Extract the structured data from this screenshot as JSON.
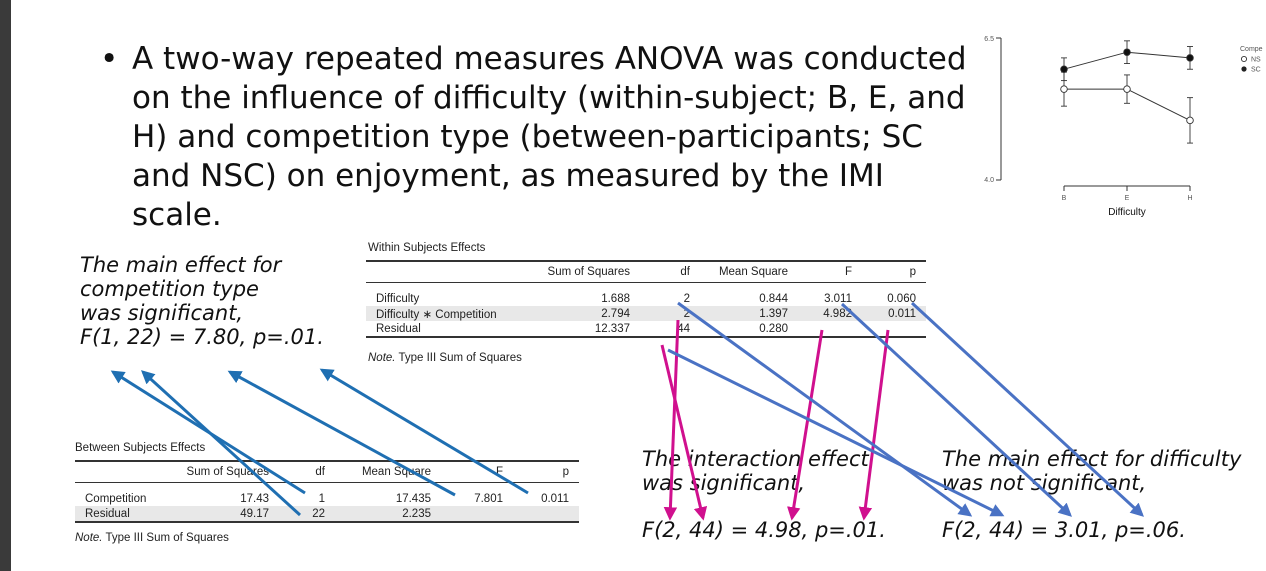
{
  "bullet": {
    "marker": "•",
    "text": "A two-way repeated measures ANOVA was conducted on the influence of difficulty (within-subject; B, E, and H) and competition type (between-participants; SC and NSC) on enjoyment, as measured by the IMI scale."
  },
  "plot": {
    "xlabel": "Difficulty",
    "x_ticks": [
      "B",
      "E",
      "H"
    ],
    "y_ticks": [
      "6.5",
      "4.0"
    ],
    "legend_title": "Compe",
    "legend": [
      {
        "marker": "open-circle",
        "label": "NS"
      },
      {
        "marker": "filled-circle",
        "label": "SC"
      }
    ]
  },
  "chart_data": {
    "type": "line",
    "categories": [
      "B",
      "E",
      "H"
    ],
    "ylim": [
      4.0,
      6.5
    ],
    "xlabel": "Difficulty",
    "series": [
      {
        "name": "NS",
        "values": [
          5.6,
          5.6,
          5.05
        ],
        "err": [
          0.3,
          0.25,
          0.4
        ]
      },
      {
        "name": "SC",
        "values": [
          5.95,
          6.25,
          6.15
        ],
        "err": [
          0.2,
          0.2,
          0.2
        ]
      }
    ],
    "legend_position": "right"
  },
  "within": {
    "title": "Within Subjects Effects",
    "headers": [
      "",
      "Sum of Squares",
      "df",
      "Mean Square",
      "F",
      "p"
    ],
    "rows": [
      [
        "Difficulty",
        "1.688",
        "2",
        "0.844",
        "3.011",
        "0.060"
      ],
      [
        "Difficulty ∗ Competition",
        "2.794",
        "2",
        "1.397",
        "4.982",
        "0.011"
      ],
      [
        "Residual",
        "12.337",
        "44",
        "0.280",
        "",
        ""
      ]
    ],
    "note_label": "Note.",
    "note_text": " Type III Sum of Squares"
  },
  "between": {
    "title": "Between Subjects Effects",
    "headers": [
      "",
      "Sum of Squares",
      "df",
      "Mean Square",
      "F",
      "p"
    ],
    "rows": [
      [
        "Competition",
        "17.43",
        "1",
        "17.435",
        "7.801",
        "0.011"
      ],
      [
        "Residual",
        "49.17",
        "22",
        "2.235",
        "",
        ""
      ]
    ],
    "note_label": "Note.",
    "note_text": " Type III Sum of Squares"
  },
  "annotations": {
    "competition": [
      "The main effect for",
      "competition type",
      "was significant,",
      "F(1, 22) = 7.80, p=.01."
    ],
    "interaction": [
      "The interaction effect",
      "was significant,"
    ],
    "interaction_stat": "F(2, 44) = 4.98, p=.01.",
    "difficulty": [
      "The main effect for difficulty",
      "was not significant,"
    ],
    "difficulty_stat": "F(2, 44) = 3.01, p=.06."
  },
  "colors": {
    "blue_arrow": "#1f6fb2",
    "magenta_arrow": "#d0108e",
    "steel_arrow": "#4a72c4"
  }
}
